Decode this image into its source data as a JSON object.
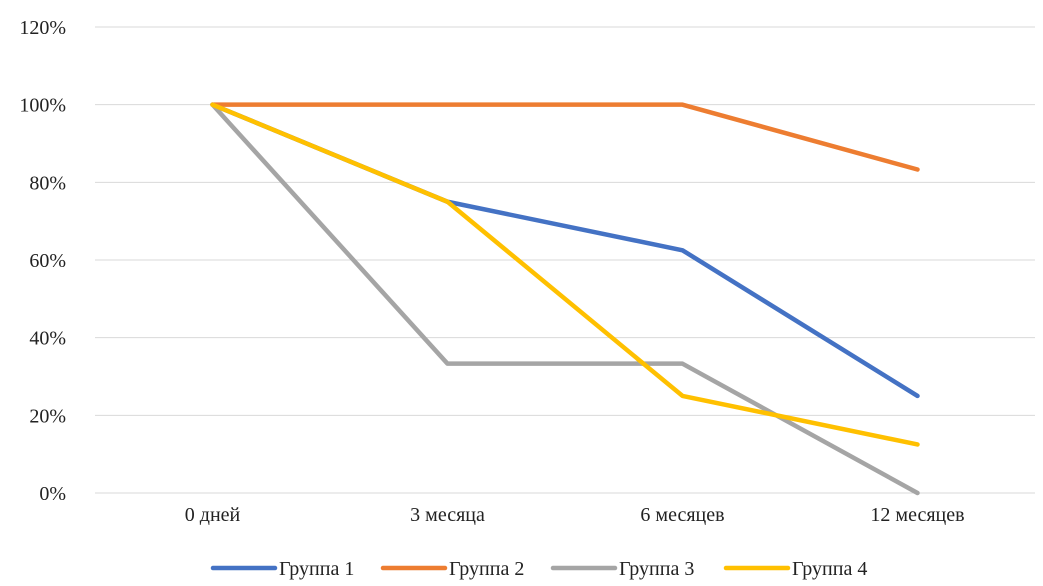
{
  "chart_data": {
    "type": "line",
    "title": "",
    "xlabel": "",
    "ylabel": "",
    "categories": [
      "0 дней",
      "3 месяца",
      "6 месяцев",
      "12 месяцев"
    ],
    "ylim": [
      0,
      1.2
    ],
    "yticks": [
      0,
      0.2,
      0.4,
      0.6,
      0.8,
      1.0,
      1.2
    ],
    "ytick_labels": [
      "0%",
      "20%",
      "40%",
      "60%",
      "80%",
      "100%",
      "120%"
    ],
    "grid": true,
    "legend_position": "bottom",
    "series": [
      {
        "name": "Группа 1",
        "color": "#4472C4",
        "values": [
          1.0,
          0.75,
          0.625,
          0.25
        ]
      },
      {
        "name": "Группа 2",
        "color": "#ED7D31",
        "values": [
          1.0,
          1.0,
          1.0,
          0.833
        ]
      },
      {
        "name": "Группа 3",
        "color": "#A5A5A5",
        "values": [
          1.0,
          0.333,
          0.333,
          0.0
        ]
      },
      {
        "name": "Группа 4",
        "color": "#FFC000",
        "values": [
          1.0,
          0.75,
          0.25,
          0.125
        ]
      }
    ]
  }
}
